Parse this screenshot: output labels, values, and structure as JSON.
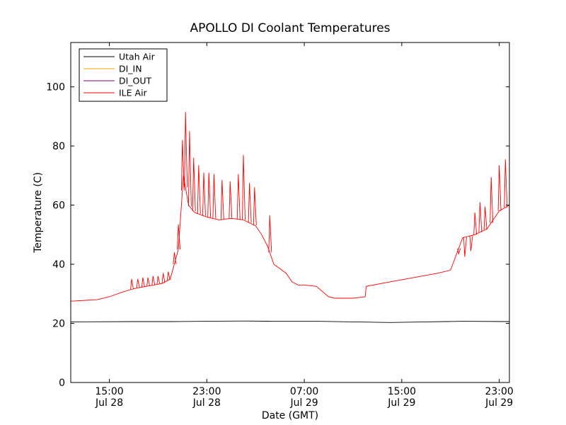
{
  "chart_data": {
    "type": "line",
    "title": "APOLLO DI Coolant Temperatures",
    "xlabel": "Date (GMT)",
    "ylabel": "Temperature (C)",
    "ylim": [
      0,
      115
    ],
    "xlim": [
      "2024-07-28 11:50",
      "2024-07-29 23:50"
    ],
    "x_ticks": [
      {
        "at": "2024-07-28 15:00",
        "time": "15:00",
        "date": "Jul 28"
      },
      {
        "at": "2024-07-28 23:00",
        "time": "23:00",
        "date": "Jul 28"
      },
      {
        "at": "2024-07-29 07:00",
        "time": "07:00",
        "date": "Jul 29"
      },
      {
        "at": "2024-07-29 15:00",
        "time": "15:00",
        "date": "Jul 29"
      },
      {
        "at": "2024-07-29 23:00",
        "time": "23:00",
        "date": "Jul 29"
      }
    ],
    "y_ticks": [
      0,
      20,
      40,
      60,
      80,
      100
    ],
    "grid": false,
    "legend_position": "top-left",
    "series": [
      {
        "name": "Utah Air",
        "color": "#000000",
        "x": [
          "2024-07-28 11:50",
          "2024-07-28 17:00",
          "2024-07-28 20:00",
          "2024-07-28 23:00",
          "2024-07-29 02:00",
          "2024-07-29 05:00",
          "2024-07-29 08:00",
          "2024-07-29 11:00",
          "2024-07-29 14:00",
          "2024-07-29 17:00",
          "2024-07-29 20:00",
          "2024-07-29 23:50"
        ],
        "y": [
          20.5,
          20.6,
          20.6,
          20.7,
          20.8,
          20.7,
          20.7,
          20.5,
          20.3,
          20.5,
          20.7,
          20.6
        ]
      },
      {
        "name": "DI_IN",
        "color": "#ffa500",
        "x": [],
        "y": []
      },
      {
        "name": "DI_OUT",
        "color": "#800080",
        "x": [],
        "y": []
      },
      {
        "name": "ILE Air",
        "color": "#ff0000",
        "x": [
          "2024-07-28 11:50",
          "2024-07-28 14:00",
          "2024-07-28 15:00",
          "2024-07-28 16:00",
          "2024-07-28 16:50",
          "2024-07-28 17:20",
          "2024-07-28 18:00",
          "2024-07-28 18:40",
          "2024-07-28 19:20",
          "2024-07-28 20:00",
          "2024-07-28 20:20",
          "2024-07-28 20:40",
          "2024-07-28 21:05",
          "2024-07-28 21:30",
          "2024-07-28 22:00",
          "2024-07-28 23:00",
          "2024-07-29 00:00",
          "2024-07-29 01:00",
          "2024-07-29 02:00",
          "2024-07-29 03:00",
          "2024-07-29 03:30",
          "2024-07-29 04:00",
          "2024-07-29 04:30",
          "2024-07-29 05:30",
          "2024-07-29 06:00",
          "2024-07-29 06:30",
          "2024-07-29 07:00",
          "2024-07-29 08:00",
          "2024-07-29 09:00",
          "2024-07-29 09:30",
          "2024-07-29 11:00",
          "2024-07-29 12:00",
          "2024-07-29 12:05",
          "2024-07-29 14:00",
          "2024-07-29 16:00",
          "2024-07-29 18:00",
          "2024-07-29 19:00",
          "2024-07-29 20:00",
          "2024-07-29 21:00",
          "2024-07-29 22:00",
          "2024-07-29 23:00",
          "2024-07-29 23:50"
        ],
        "y": [
          27.5,
          28.0,
          29.0,
          30.5,
          31.5,
          32.0,
          32.5,
          33.0,
          33.5,
          35.0,
          40.0,
          45.0,
          70.0,
          60.0,
          57.5,
          56.0,
          55.0,
          55.5,
          55.0,
          53.0,
          50.0,
          46.0,
          40.0,
          37.0,
          34.0,
          33.0,
          33.0,
          32.5,
          29.0,
          28.5,
          28.5,
          29.0,
          32.5,
          34.0,
          35.5,
          37.0,
          38.0,
          49.0,
          50.0,
          52.0,
          58.0,
          60.0
        ],
        "spikes": [
          {
            "x": "2024-07-28 16:50",
            "y": 35.0
          },
          {
            "x": "2024-07-28 17:20",
            "y": 35.0
          },
          {
            "x": "2024-07-28 17:45",
            "y": 35.5
          },
          {
            "x": "2024-07-28 18:10",
            "y": 35.5
          },
          {
            "x": "2024-07-28 18:35",
            "y": 36.0
          },
          {
            "x": "2024-07-28 19:00",
            "y": 36.0
          },
          {
            "x": "2024-07-28 19:25",
            "y": 37.0
          },
          {
            "x": "2024-07-28 19:50",
            "y": 37.5
          },
          {
            "x": "2024-07-28 20:20",
            "y": 44.0
          },
          {
            "x": "2024-07-28 20:40",
            "y": 53.5
          },
          {
            "x": "2024-07-28 21:00",
            "y": 82.0
          },
          {
            "x": "2024-07-28 21:15",
            "y": 91.5
          },
          {
            "x": "2024-07-28 21:35",
            "y": 85.0
          },
          {
            "x": "2024-07-28 21:55",
            "y": 76.0
          },
          {
            "x": "2024-07-28 22:20",
            "y": 73.5
          },
          {
            "x": "2024-07-28 22:45",
            "y": 71.0
          },
          {
            "x": "2024-07-28 23:10",
            "y": 71.0
          },
          {
            "x": "2024-07-28 23:35",
            "y": 70.5
          },
          {
            "x": "2024-07-29 00:15",
            "y": 68.5
          },
          {
            "x": "2024-07-29 00:55",
            "y": 68.0
          },
          {
            "x": "2024-07-29 01:35",
            "y": 70.5
          },
          {
            "x": "2024-07-29 02:00",
            "y": 77.0
          },
          {
            "x": "2024-07-29 02:30",
            "y": 67.5
          },
          {
            "x": "2024-07-29 02:55",
            "y": 66.0
          },
          {
            "x": "2024-07-29 04:10",
            "y": 56.5
          },
          {
            "x": "2024-07-29 19:40",
            "y": 43.5
          },
          {
            "x": "2024-07-29 20:10",
            "y": 42.5
          },
          {
            "x": "2024-07-29 20:40",
            "y": 44.5
          },
          {
            "x": "2024-07-29 21:00",
            "y": 57.5
          },
          {
            "x": "2024-07-29 21:25",
            "y": 61.0
          },
          {
            "x": "2024-07-29 21:50",
            "y": 59.5
          },
          {
            "x": "2024-07-29 22:20",
            "y": 69.5
          },
          {
            "x": "2024-07-29 23:00",
            "y": 73.5
          },
          {
            "x": "2024-07-29 23:30",
            "y": 75.5
          }
        ]
      }
    ]
  }
}
